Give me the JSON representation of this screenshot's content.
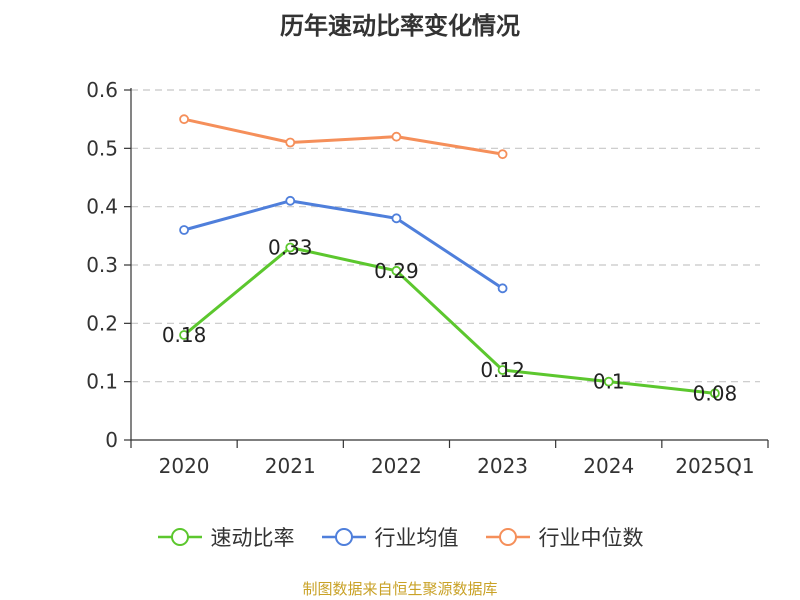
{
  "chart_data": {
    "type": "line",
    "title": "历年速动比率变化情况",
    "categories": [
      "2020",
      "2021",
      "2022",
      "2023",
      "2024",
      "2025Q1"
    ],
    "ylim": [
      0,
      0.6
    ],
    "yticks": [
      "0",
      "0.1",
      "0.2",
      "0.3",
      "0.4",
      "0.5",
      "0.6"
    ],
    "grid": true,
    "legend_position": "bottom",
    "series": [
      {
        "name": "速动比率",
        "color": "#5cc72e",
        "values": [
          0.18,
          0.33,
          0.29,
          0.12,
          0.1,
          0.08
        ],
        "labels": [
          "0.18",
          "0.33",
          "0.29",
          "0.12",
          "0.1",
          "0.08"
        ]
      },
      {
        "name": "行业均值",
        "color": "#4f7fdb",
        "values": [
          0.36,
          0.41,
          0.38,
          0.26,
          null,
          null
        ]
      },
      {
        "name": "行业中位数",
        "color": "#f58f5a",
        "values": [
          0.55,
          0.51,
          0.52,
          0.49,
          null,
          null
        ]
      }
    ]
  },
  "source": "制图数据来自恒生聚源数据库"
}
